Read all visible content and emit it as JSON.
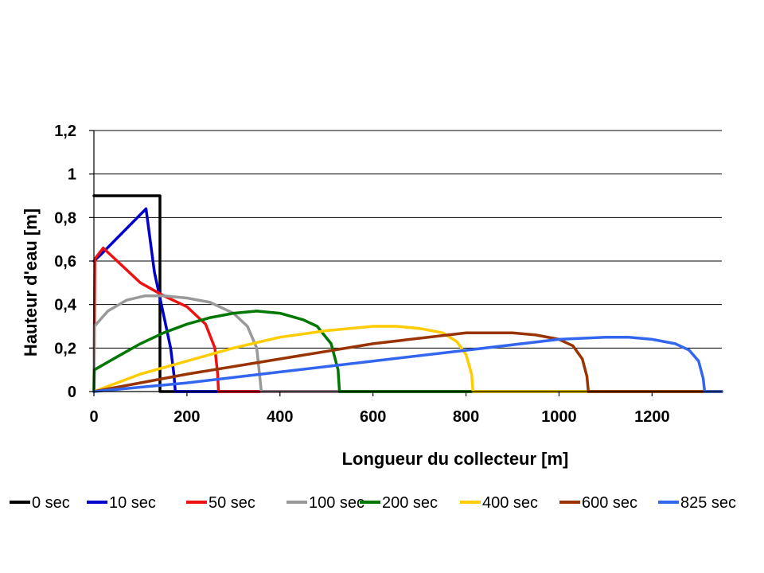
{
  "chart_data": {
    "type": "line",
    "title": "",
    "xlabel": "Longueur du collecteur [m]",
    "ylabel": "Hauteur d'eau [m]",
    "xlim": [
      0,
      1350
    ],
    "ylim": [
      0,
      1.2
    ],
    "xticks": [
      0,
      200,
      400,
      600,
      800,
      1000,
      1200
    ],
    "xtick_labels": [
      "0",
      "200",
      "400",
      "600",
      "800",
      "1000",
      "1200"
    ],
    "yticks": [
      0,
      0.2,
      0.4,
      0.6,
      0.8,
      1,
      1.2
    ],
    "ytick_labels": [
      "0",
      "0,2",
      "0,4",
      "0,6",
      "0,8",
      "1",
      "1,2"
    ],
    "grid": "horizontal",
    "legend_position": "bottom",
    "series": [
      {
        "name": "0 sec",
        "color": "#000000",
        "x": [
          0,
          142,
          142,
          1350
        ],
        "y": [
          0.9,
          0.9,
          0,
          0
        ]
      },
      {
        "name": "10 sec",
        "color": "#0000CC",
        "x": [
          0,
          15,
          112,
          130,
          150,
          165,
          172,
          175,
          1350
        ],
        "y": [
          0.6,
          0.63,
          0.84,
          0.55,
          0.35,
          0.2,
          0.08,
          0,
          0
        ]
      },
      {
        "name": "50 sec",
        "color": "#EE1111",
        "x": [
          0,
          2,
          20,
          60,
          100,
          150,
          200,
          240,
          260,
          266,
          268,
          1350
        ],
        "y": [
          0,
          0.61,
          0.66,
          0.58,
          0.5,
          0.44,
          0.39,
          0.31,
          0.2,
          0.08,
          0,
          0
        ]
      },
      {
        "name": "100 sec",
        "color": "#999999",
        "x": [
          0,
          1,
          30,
          70,
          110,
          150,
          200,
          250,
          300,
          330,
          350,
          360,
          1350
        ],
        "y": [
          0,
          0.3,
          0.37,
          0.42,
          0.44,
          0.44,
          0.43,
          0.41,
          0.36,
          0.3,
          0.2,
          0,
          0
        ]
      },
      {
        "name": "200 sec",
        "color": "#007700",
        "x": [
          0,
          1,
          50,
          100,
          150,
          200,
          250,
          300,
          350,
          400,
          450,
          480,
          510,
          525,
          528,
          1350
        ],
        "y": [
          0,
          0.1,
          0.16,
          0.22,
          0.27,
          0.31,
          0.34,
          0.36,
          0.37,
          0.36,
          0.33,
          0.3,
          0.22,
          0.1,
          0,
          0
        ]
      },
      {
        "name": "400 sec",
        "color": "#FFCC00",
        "x": [
          0,
          100,
          200,
          300,
          400,
          500,
          600,
          650,
          700,
          750,
          780,
          800,
          812,
          815,
          1350
        ],
        "y": [
          0,
          0.08,
          0.14,
          0.2,
          0.25,
          0.28,
          0.3,
          0.3,
          0.29,
          0.27,
          0.23,
          0.17,
          0.08,
          0,
          0
        ]
      },
      {
        "name": "600 sec",
        "color": "#993300",
        "x": [
          0,
          200,
          400,
          600,
          800,
          860,
          900,
          950,
          1000,
          1030,
          1050,
          1060,
          1063,
          1350
        ],
        "y": [
          0,
          0.08,
          0.15,
          0.22,
          0.27,
          0.27,
          0.27,
          0.26,
          0.24,
          0.21,
          0.15,
          0.07,
          0,
          0
        ]
      },
      {
        "name": "825 sec",
        "color": "#3366EE",
        "x": [
          0,
          200,
          400,
          600,
          800,
          1000,
          1100,
          1150,
          1200,
          1250,
          1280,
          1300,
          1310,
          1313,
          1350
        ],
        "y": [
          0,
          0.04,
          0.09,
          0.14,
          0.19,
          0.24,
          0.25,
          0.25,
          0.24,
          0.22,
          0.19,
          0.14,
          0.06,
          0,
          0
        ]
      }
    ]
  }
}
